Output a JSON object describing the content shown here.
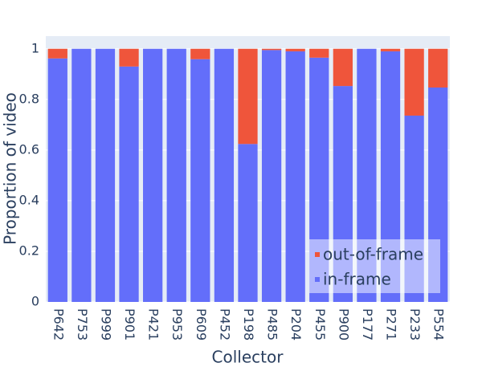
{
  "chart_data": {
    "type": "stacked-bar",
    "x_label": "Collector",
    "y_label": "Proportion of video",
    "categories": [
      "P642",
      "P753",
      "P999",
      "P901",
      "P421",
      "P953",
      "P609",
      "P452",
      "P198",
      "P485",
      "P204",
      "P455",
      "P900",
      "P177",
      "P271",
      "P233",
      "P554"
    ],
    "series": [
      {
        "name": "in-frame",
        "color": "#636efa",
        "values": [
          0.962,
          1,
          1,
          0.93,
          1,
          1,
          0.959,
          1,
          0.624,
          0.995,
          0.99,
          0.965,
          0.853,
          1,
          0.99,
          0.736,
          0.847
        ]
      },
      {
        "name": "out-of-frame",
        "color": "#EF553B",
        "values": [
          0.038,
          0,
          0,
          0.07,
          0,
          0,
          0.041,
          0,
          0.376,
          0.005,
          0.01,
          0.035,
          0.147,
          0,
          0.01,
          0.264,
          0.153
        ]
      }
    ],
    "ylim": [
      0,
      1.05
    ],
    "yticks": [
      0,
      0.2,
      0.4,
      0.6,
      0.8,
      1
    ],
    "grid": true,
    "legend": "bottom-right"
  }
}
